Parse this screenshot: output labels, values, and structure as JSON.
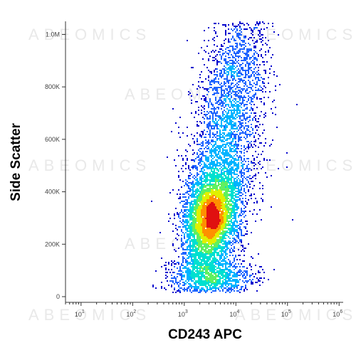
{
  "chart_data": {
    "type": "scatter",
    "subtype": "flow-cytometry density dot plot",
    "xlabel": "CD243 APC",
    "ylabel": "Side Scatter",
    "x_scale": "log",
    "xlim": [
      5,
      1200000
    ],
    "x_ticks": [
      {
        "value": 10,
        "base": "10",
        "exp": "1"
      },
      {
        "value": 100,
        "base": "10",
        "exp": "2"
      },
      {
        "value": 1000,
        "base": "10",
        "exp": "3"
      },
      {
        "value": 10000,
        "base": "10",
        "exp": "4"
      },
      {
        "value": 100000,
        "base": "10",
        "exp": "5"
      },
      {
        "value": 1000000,
        "base": "10",
        "exp": "6"
      }
    ],
    "y_scale": "linear",
    "ylim": [
      0,
      1050000
    ],
    "y_ticks": [
      {
        "value": 0,
        "label": "0"
      },
      {
        "value": 200000,
        "label": "200K"
      },
      {
        "value": 400000,
        "label": "400K"
      },
      {
        "value": 600000,
        "label": "600K"
      },
      {
        "value": 800000,
        "label": "800K"
      },
      {
        "value": 1000000,
        "label": "1.0M"
      }
    ],
    "grid": false,
    "density_colors": [
      "#0000cc",
      "#1e64ff",
      "#00b4ff",
      "#00e0d0",
      "#60f060",
      "#e0f000",
      "#ff9000",
      "#e01010"
    ],
    "populations": [
      {
        "x_center_log10": 3.5,
        "y_center": 300000,
        "x_spread_log10": 0.25,
        "y_spread": 90000,
        "share": 0.45
      },
      {
        "x_center_log10": 3.7,
        "y_center": 480000,
        "x_spread_log10": 0.35,
        "y_spread": 200000,
        "share": 0.3
      },
      {
        "x_center_log10": 3.5,
        "y_center": 80000,
        "x_spread_log10": 0.4,
        "y_spread": 35000,
        "share": 0.12
      },
      {
        "x_center_log10": 4.0,
        "y_center": 850000,
        "x_spread_log10": 0.3,
        "y_spread": 150000,
        "share": 0.13
      }
    ],
    "watermark": "ABEOMICS"
  }
}
